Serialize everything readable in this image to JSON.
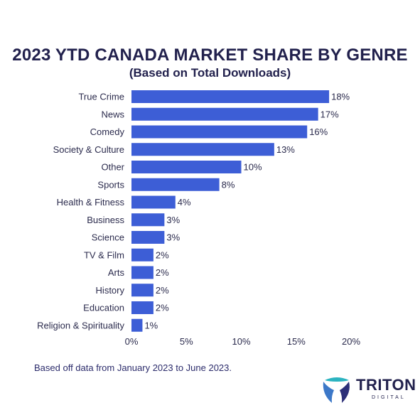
{
  "header": {
    "title": "2023 YTD CANADA MARKET SHARE BY GENRE",
    "subtitle": "(Based on Total Downloads)"
  },
  "footnote": "Based off data from January 2023 to June 2023.",
  "logo": {
    "icon": "triton-logo-icon",
    "text": "TRITON",
    "subtext": "DIGITAL"
  },
  "colors": {
    "bar": "#3d5ed6",
    "text": "#22214d"
  },
  "chart_data": {
    "type": "bar",
    "orientation": "horizontal",
    "title": "2023 YTD CANADA MARKET SHARE BY GENRE",
    "subtitle": "(Based on Total Downloads)",
    "categories": [
      "True Crime",
      "News",
      "Comedy",
      "Society & Culture",
      "Other",
      "Sports",
      "Health & Fitness",
      "Business",
      "Science",
      "TV & Film",
      "Arts",
      "History",
      "Education",
      "Religion & Spirituality"
    ],
    "values": [
      18,
      17,
      16,
      13,
      10,
      8,
      4,
      3,
      3,
      2,
      2,
      2,
      2,
      1
    ],
    "value_labels": [
      "18%",
      "17%",
      "16%",
      "13%",
      "10%",
      "8%",
      "4%",
      "3%",
      "3%",
      "2%",
      "2%",
      "2%",
      "2%",
      "1%"
    ],
    "xlim": [
      0,
      20
    ],
    "xticks": [
      0,
      5,
      10,
      15,
      20
    ],
    "xtick_labels": [
      "0%",
      "5%",
      "10%",
      "15%",
      "20%"
    ],
    "grid": false,
    "legend": "none"
  }
}
